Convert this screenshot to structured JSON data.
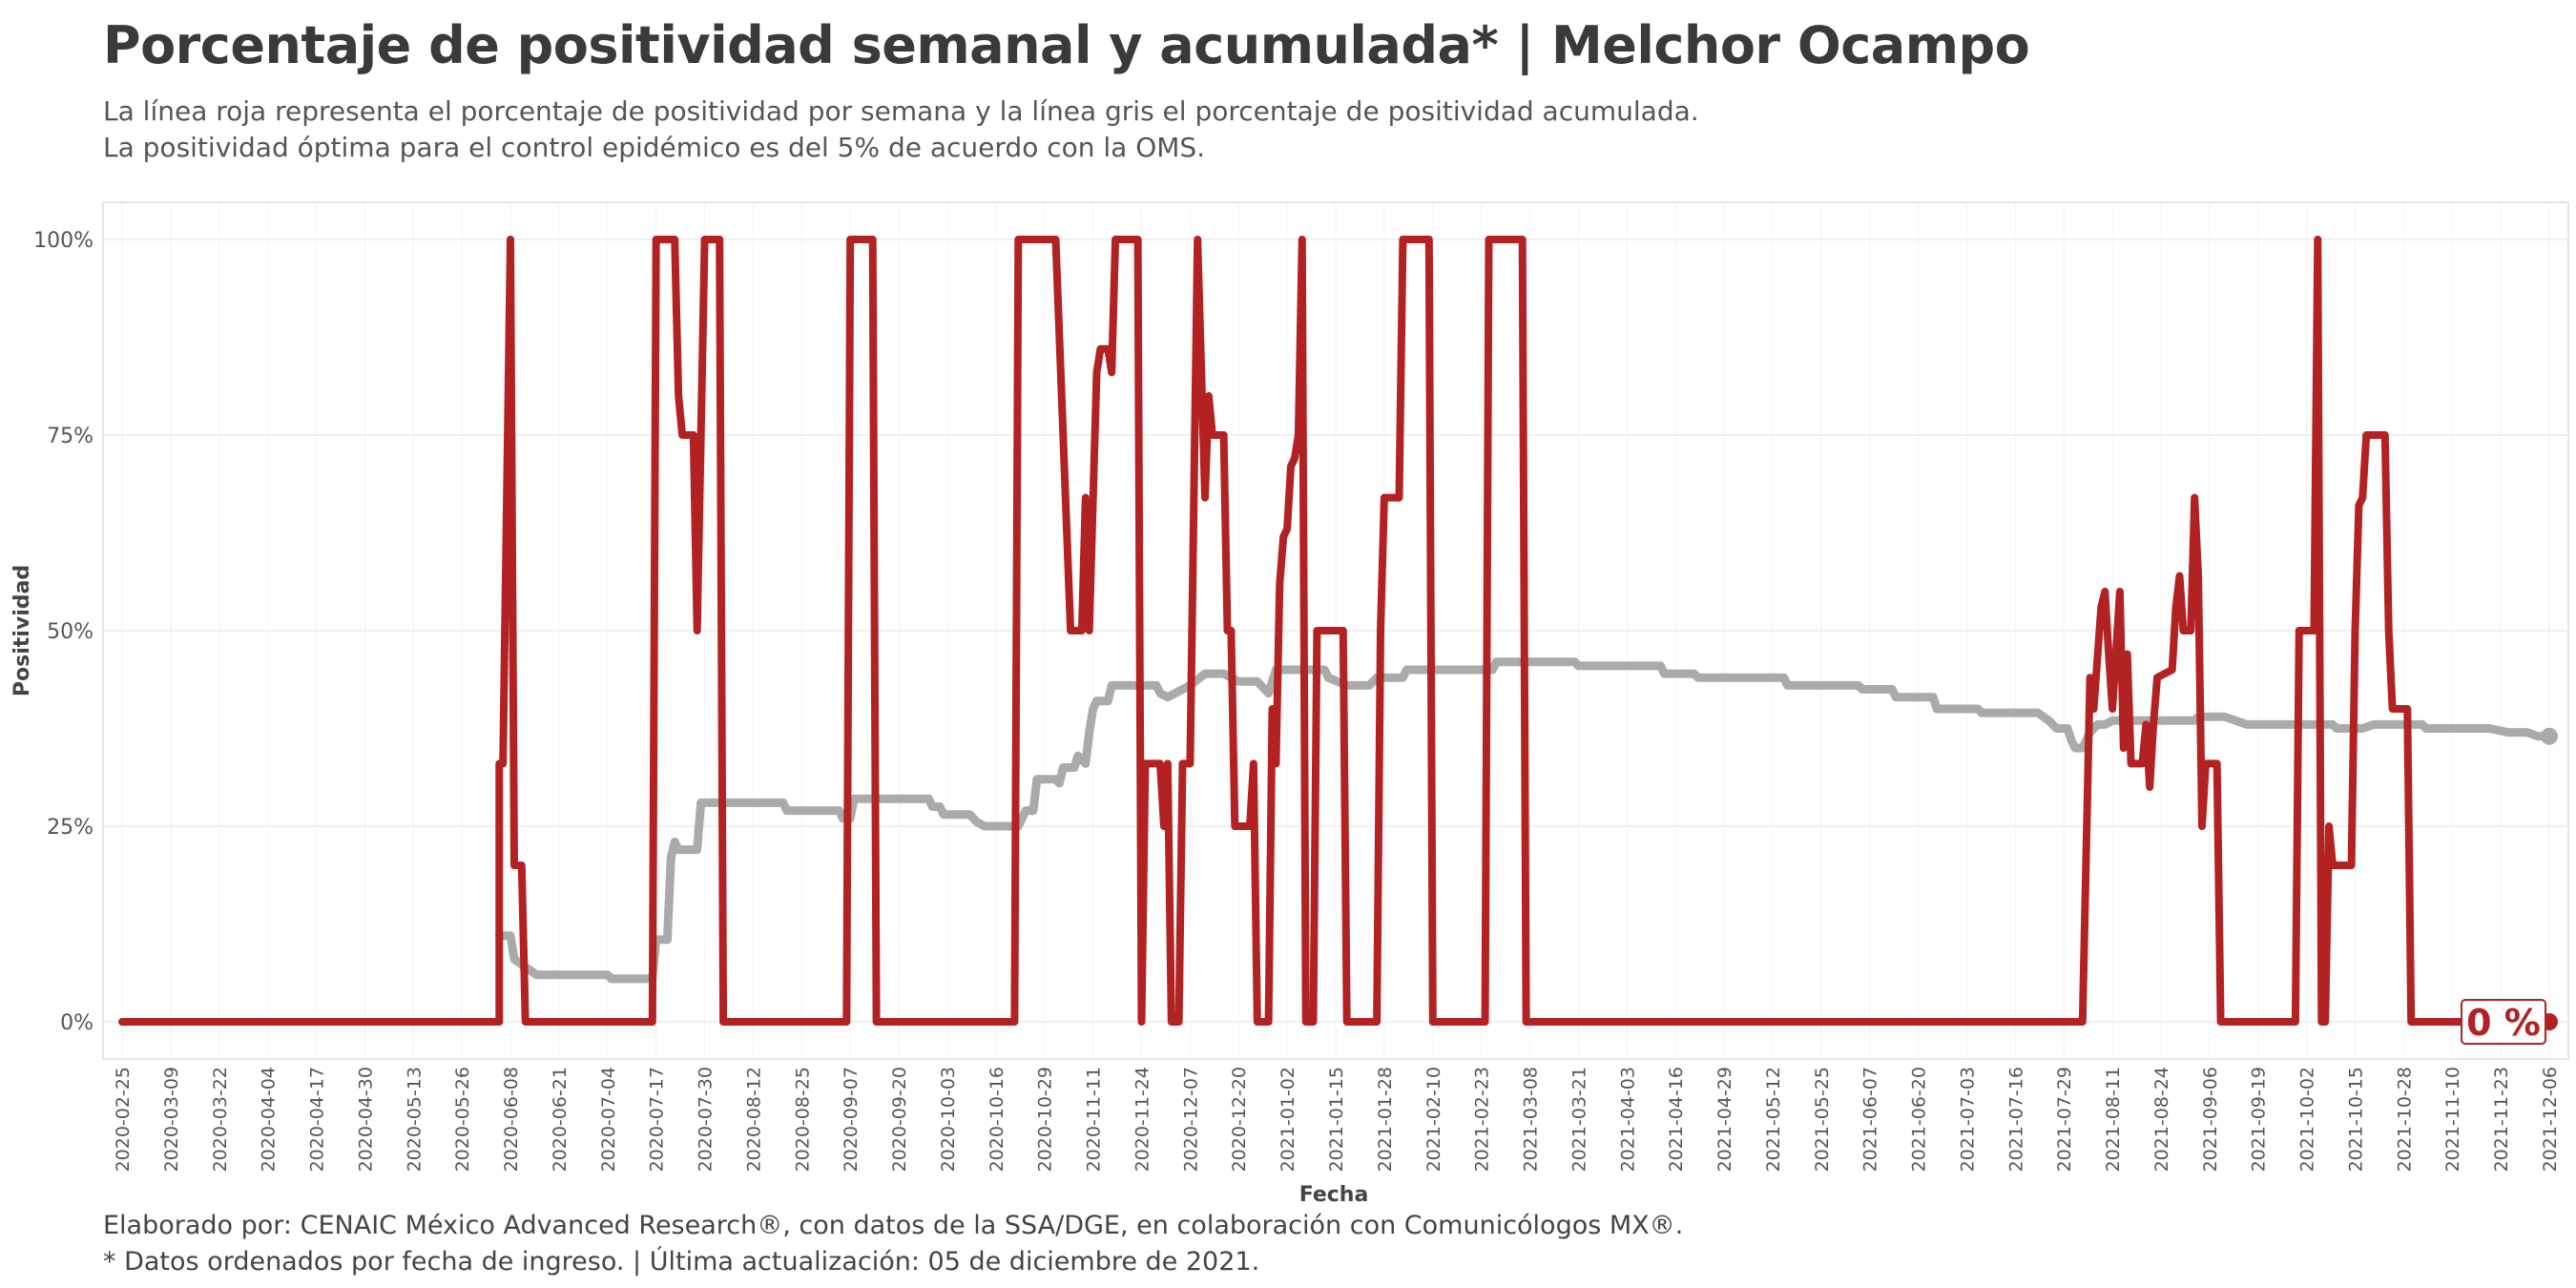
{
  "title": "Porcentaje de positividad semanal y acumulada* | Melchor Ocampo",
  "subtitle": [
    "La línea roja representa el porcentaje de positividad por semana y la línea gris el porcentaje de positividad acumulada.",
    "La positividad óptima para el control epidémico es del 5% de acuerdo con la OMS."
  ],
  "caption": [
    "Elaborado por: CENAIC México Advanced Research®, con datos de la SSA/DGE, en colaboración con Comunicólogos MX®.",
    "* Datos ordenados por fecha de ingreso. | Última actualización: 05 de diciembre de 2021."
  ],
  "colors": {
    "weekly": "#b22222",
    "cumulative": "#aaaaaa",
    "text": "#3a3a3a"
  },
  "chart_data": {
    "type": "line",
    "xlabel": "Fecha",
    "ylabel": "Positividad",
    "x_range": [
      "2020-02-25",
      "2021-12-06"
    ],
    "ylim": [
      0,
      100
    ],
    "y_ticks": [
      0,
      25,
      50,
      75,
      100
    ],
    "y_tick_labels": [
      "0%",
      "25%",
      "50%",
      "75%",
      "100%"
    ],
    "x_ticks": [
      "2020-02-25",
      "2020-03-09",
      "2020-03-22",
      "2020-04-04",
      "2020-04-17",
      "2020-04-30",
      "2020-05-13",
      "2020-05-26",
      "2020-06-08",
      "2020-06-21",
      "2020-07-04",
      "2020-07-17",
      "2020-07-30",
      "2020-08-12",
      "2020-08-25",
      "2020-09-07",
      "2020-09-20",
      "2020-10-03",
      "2020-10-16",
      "2020-10-29",
      "2020-11-11",
      "2020-11-24",
      "2020-12-07",
      "2020-12-20",
      "2021-01-02",
      "2021-01-15",
      "2021-01-28",
      "2021-02-10",
      "2021-02-23",
      "2021-03-08",
      "2021-03-21",
      "2021-04-03",
      "2021-04-16",
      "2021-04-29",
      "2021-05-12",
      "2021-05-25",
      "2021-06-07",
      "2021-06-20",
      "2021-07-03",
      "2021-07-16",
      "2021-07-29",
      "2021-08-11",
      "2021-08-24",
      "2021-09-06",
      "2021-09-19",
      "2021-10-02",
      "2021-10-15",
      "2021-10-28",
      "2021-11-10",
      "2021-11-23",
      "2021-12-06"
    ],
    "grid": true,
    "end_label": "0 %",
    "series": [
      {
        "key": "weekly",
        "points": [
          [
            "2020-02-25",
            0
          ],
          [
            "2020-06-05",
            0
          ],
          [
            "2020-06-05",
            33
          ],
          [
            "2020-06-06",
            33
          ],
          [
            "2020-06-08",
            100
          ],
          [
            "2020-06-09",
            20
          ],
          [
            "2020-06-11",
            20
          ],
          [
            "2020-06-12",
            0
          ],
          [
            "2020-07-16",
            0
          ],
          [
            "2020-07-17",
            100
          ],
          [
            "2020-07-22",
            100
          ],
          [
            "2020-07-23",
            80
          ],
          [
            "2020-07-24",
            75
          ],
          [
            "2020-07-27",
            75
          ],
          [
            "2020-07-28",
            50
          ],
          [
            "2020-07-30",
            100
          ],
          [
            "2020-08-03",
            100
          ],
          [
            "2020-08-04",
            0
          ],
          [
            "2020-09-06",
            0
          ],
          [
            "2020-09-07",
            100
          ],
          [
            "2020-09-13",
            100
          ],
          [
            "2020-09-14",
            0
          ],
          [
            "2020-10-21",
            0
          ],
          [
            "2020-10-22",
            100
          ],
          [
            "2020-11-01",
            100
          ],
          [
            "2020-11-05",
            50
          ],
          [
            "2020-11-08",
            50
          ],
          [
            "2020-11-09",
            67
          ],
          [
            "2020-11-10",
            50
          ],
          [
            "2020-11-12",
            83
          ],
          [
            "2020-11-13",
            86
          ],
          [
            "2020-11-15",
            86
          ],
          [
            "2020-11-16",
            83
          ],
          [
            "2020-11-17",
            100
          ],
          [
            "2020-11-23",
            100
          ],
          [
            "2020-11-24",
            0
          ],
          [
            "2020-11-25",
            33
          ],
          [
            "2020-11-29",
            33
          ],
          [
            "2020-11-30",
            25
          ],
          [
            "2020-12-01",
            33
          ],
          [
            "2020-12-02",
            0
          ],
          [
            "2020-12-04",
            0
          ],
          [
            "2020-12-05",
            33
          ],
          [
            "2020-12-07",
            33
          ],
          [
            "2020-12-09",
            100
          ],
          [
            "2020-12-11",
            67
          ],
          [
            "2020-12-12",
            80
          ],
          [
            "2020-12-13",
            75
          ],
          [
            "2020-12-16",
            75
          ],
          [
            "2020-12-17",
            50
          ],
          [
            "2020-12-18",
            50
          ],
          [
            "2020-12-19",
            25
          ],
          [
            "2020-12-23",
            25
          ],
          [
            "2020-12-24",
            33
          ],
          [
            "2020-12-25",
            0
          ],
          [
            "2020-12-28",
            0
          ],
          [
            "2020-12-29",
            40
          ],
          [
            "2020-12-30",
            33
          ],
          [
            "2020-12-31",
            56
          ],
          [
            "2021-01-01",
            62
          ],
          [
            "2021-01-02",
            63
          ],
          [
            "2021-01-03",
            71
          ],
          [
            "2021-01-04",
            72
          ],
          [
            "2021-01-05",
            75
          ],
          [
            "2021-01-06",
            100
          ],
          [
            "2021-01-07",
            0
          ],
          [
            "2021-01-09",
            0
          ],
          [
            "2021-01-10",
            50
          ],
          [
            "2021-01-17",
            50
          ],
          [
            "2021-01-18",
            0
          ],
          [
            "2021-01-26",
            0
          ],
          [
            "2021-01-27",
            50
          ],
          [
            "2021-01-28",
            67
          ],
          [
            "2021-02-01",
            67
          ],
          [
            "2021-02-02",
            100
          ],
          [
            "2021-02-09",
            100
          ],
          [
            "2021-02-10",
            0
          ],
          [
            "2021-02-24",
            0
          ],
          [
            "2021-02-25",
            100
          ],
          [
            "2021-03-06",
            100
          ],
          [
            "2021-03-07",
            0
          ],
          [
            "2021-08-03",
            0
          ],
          [
            "2021-08-05",
            44
          ],
          [
            "2021-08-06",
            40
          ],
          [
            "2021-08-08",
            53
          ],
          [
            "2021-08-09",
            55
          ],
          [
            "2021-08-10",
            47
          ],
          [
            "2021-08-11",
            40
          ],
          [
            "2021-08-13",
            55
          ],
          [
            "2021-08-14",
            35
          ],
          [
            "2021-08-15",
            47
          ],
          [
            "2021-08-16",
            33
          ],
          [
            "2021-08-19",
            33
          ],
          [
            "2021-08-20",
            38
          ],
          [
            "2021-08-21",
            30
          ],
          [
            "2021-08-22",
            38
          ],
          [
            "2021-08-23",
            44
          ],
          [
            "2021-08-27",
            45
          ],
          [
            "2021-08-28",
            53
          ],
          [
            "2021-08-29",
            57
          ],
          [
            "2021-08-30",
            50
          ],
          [
            "2021-09-01",
            50
          ],
          [
            "2021-09-02",
            67
          ],
          [
            "2021-09-03",
            57
          ],
          [
            "2021-09-04",
            25
          ],
          [
            "2021-09-05",
            33
          ],
          [
            "2021-09-08",
            33
          ],
          [
            "2021-09-09",
            0
          ],
          [
            "2021-09-29",
            0
          ],
          [
            "2021-09-30",
            50
          ],
          [
            "2021-10-04",
            50
          ],
          [
            "2021-10-05",
            100
          ],
          [
            "2021-10-06",
            0
          ],
          [
            "2021-10-07",
            0
          ],
          [
            "2021-10-08",
            25
          ],
          [
            "2021-10-09",
            20
          ],
          [
            "2021-10-14",
            20
          ],
          [
            "2021-10-15",
            50
          ],
          [
            "2021-10-16",
            66
          ],
          [
            "2021-10-17",
            67
          ],
          [
            "2021-10-18",
            75
          ],
          [
            "2021-10-23",
            75
          ],
          [
            "2021-10-24",
            50
          ],
          [
            "2021-10-25",
            40
          ],
          [
            "2021-10-29",
            40
          ],
          [
            "2021-10-30",
            0
          ],
          [
            "2021-12-06",
            0
          ]
        ]
      },
      {
        "key": "cumulative",
        "points": [
          [
            "2020-06-05",
            11
          ],
          [
            "2020-06-08",
            11
          ],
          [
            "2020-06-09",
            8
          ],
          [
            "2020-06-12",
            7
          ],
          [
            "2020-06-15",
            6
          ],
          [
            "2020-06-18",
            6
          ],
          [
            "2020-06-21",
            6
          ],
          [
            "2020-07-04",
            6
          ],
          [
            "2020-07-05",
            5.5
          ],
          [
            "2020-07-16",
            5.5
          ],
          [
            "2020-07-17",
            10.5
          ],
          [
            "2020-07-20",
            10.5
          ],
          [
            "2020-07-21",
            21
          ],
          [
            "2020-07-22",
            23
          ],
          [
            "2020-07-23",
            22
          ],
          [
            "2020-07-28",
            22
          ],
          [
            "2020-07-29",
            28
          ],
          [
            "2020-08-20",
            28
          ],
          [
            "2020-08-21",
            27
          ],
          [
            "2020-09-04",
            27
          ],
          [
            "2020-09-05",
            26
          ],
          [
            "2020-09-07",
            26
          ],
          [
            "2020-09-08",
            28.5
          ],
          [
            "2020-09-28",
            28.5
          ],
          [
            "2020-09-29",
            27.5
          ],
          [
            "2020-10-01",
            27.5
          ],
          [
            "2020-10-02",
            26.5
          ],
          [
            "2020-10-09",
            26.5
          ],
          [
            "2020-10-11",
            25.5
          ],
          [
            "2020-10-13",
            25
          ],
          [
            "2020-10-22",
            25
          ],
          [
            "2020-10-24",
            27
          ],
          [
            "2020-10-26",
            27
          ],
          [
            "2020-10-27",
            31
          ],
          [
            "2020-11-01",
            31
          ],
          [
            "2020-11-02",
            30.5
          ],
          [
            "2020-11-03",
            32.5
          ],
          [
            "2020-11-06",
            32.5
          ],
          [
            "2020-11-07",
            34
          ],
          [
            "2020-11-08",
            33.5
          ],
          [
            "2020-11-09",
            33
          ],
          [
            "2020-11-10",
            37
          ],
          [
            "2020-11-11",
            40
          ],
          [
            "2020-11-12",
            41
          ],
          [
            "2020-11-15",
            41
          ],
          [
            "2020-11-16",
            43
          ],
          [
            "2020-11-28",
            43
          ],
          [
            "2020-11-29",
            42
          ],
          [
            "2020-12-01",
            41.5
          ],
          [
            "2020-12-03",
            42
          ],
          [
            "2020-12-05",
            42.5
          ],
          [
            "2020-12-07",
            43
          ],
          [
            "2020-12-11",
            44.5
          ],
          [
            "2020-12-16",
            44.5
          ],
          [
            "2020-12-18",
            44
          ],
          [
            "2020-12-20",
            43.5
          ],
          [
            "2020-12-25",
            43.5
          ],
          [
            "2020-12-28",
            42
          ],
          [
            "2020-12-30",
            45
          ],
          [
            "2021-01-12",
            45
          ],
          [
            "2021-01-13",
            44
          ],
          [
            "2021-01-18",
            43
          ],
          [
            "2021-01-24",
            43
          ],
          [
            "2021-01-26",
            44
          ],
          [
            "2021-02-02",
            44
          ],
          [
            "2021-02-03",
            45
          ],
          [
            "2021-02-26",
            45
          ],
          [
            "2021-02-27",
            46
          ],
          [
            "2021-03-20",
            46
          ],
          [
            "2021-03-21",
            45.5
          ],
          [
            "2021-04-12",
            45.5
          ],
          [
            "2021-04-13",
            44.5
          ],
          [
            "2021-04-21",
            44.5
          ],
          [
            "2021-04-22",
            44
          ],
          [
            "2021-05-15",
            44
          ],
          [
            "2021-05-16",
            43
          ],
          [
            "2021-06-04",
            43
          ],
          [
            "2021-06-05",
            42.5
          ],
          [
            "2021-06-13",
            42.5
          ],
          [
            "2021-06-14",
            41.5
          ],
          [
            "2021-06-24",
            41.5
          ],
          [
            "2021-06-25",
            40
          ],
          [
            "2021-07-06",
            40
          ],
          [
            "2021-07-07",
            39.5
          ],
          [
            "2021-07-22",
            39.5
          ],
          [
            "2021-07-25",
            38.5
          ],
          [
            "2021-07-27",
            37.5
          ],
          [
            "2021-07-30",
            37.5
          ],
          [
            "2021-07-31",
            36
          ],
          [
            "2021-08-01",
            35
          ],
          [
            "2021-08-03",
            35
          ],
          [
            "2021-08-05",
            37
          ],
          [
            "2021-08-07",
            38
          ],
          [
            "2021-08-09",
            38
          ],
          [
            "2021-08-11",
            38.5
          ],
          [
            "2021-09-02",
            38.5
          ],
          [
            "2021-09-03",
            39
          ],
          [
            "2021-09-10",
            39
          ],
          [
            "2021-09-13",
            38.5
          ],
          [
            "2021-09-16",
            38
          ],
          [
            "2021-10-09",
            38
          ],
          [
            "2021-10-10",
            37.5
          ],
          [
            "2021-10-17",
            37.5
          ],
          [
            "2021-10-20",
            38
          ],
          [
            "2021-11-02",
            38
          ],
          [
            "2021-11-03",
            37.5
          ],
          [
            "2021-11-20",
            37.5
          ],
          [
            "2021-11-25",
            37
          ],
          [
            "2021-11-30",
            37
          ],
          [
            "2021-12-03",
            36.5
          ],
          [
            "2021-12-06",
            36.5
          ]
        ]
      }
    ]
  }
}
